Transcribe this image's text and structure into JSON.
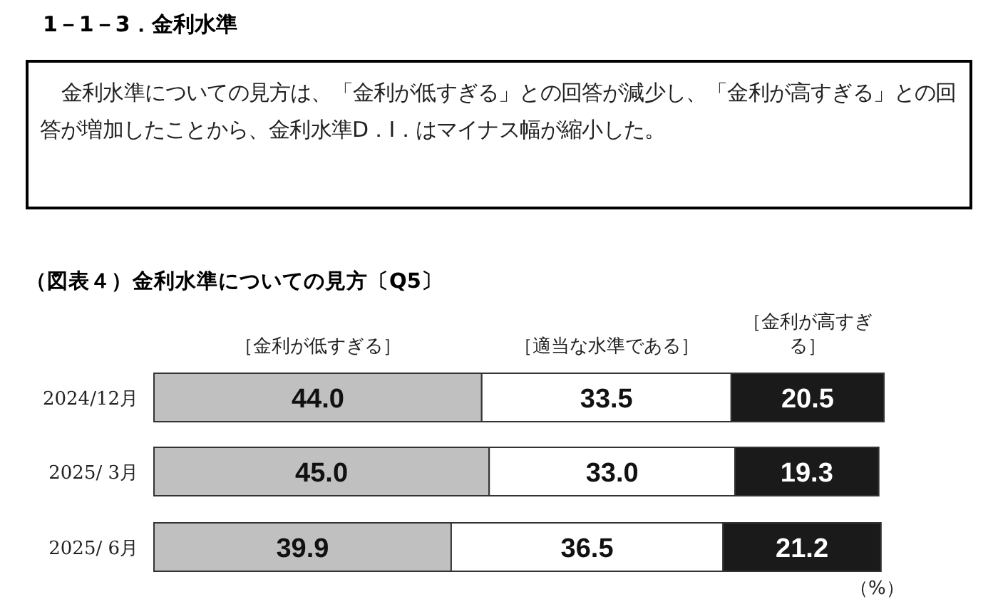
{
  "chart_data": {
    "type": "bar",
    "orientation": "horizontal",
    "stacked": true,
    "legend": "top",
    "title": "（図表４）金利水準についての見方〔Q5〕",
    "annotations": [
      "1－1－3．金利水準",
      "金利水準についての見方は、「金利が低すぎる」との回答が減少し、「金利が高すぎる」との回答が増加したことから、金利水準D．I．はマイナス幅が縮小した。",
      "（%）"
    ],
    "categories": [
      "2024/12月",
      "2025/ 3月",
      "2025/ 6月"
    ],
    "series": [
      {
        "name": "［金利が低すぎる］",
        "color": "#c0c0c0",
        "values": [
          44.0,
          45.0,
          39.9
        ],
        "value_labels": [
          "44.0",
          "45.0",
          "39.9"
        ]
      },
      {
        "name": "［適当な水準である］",
        "color": "#ffffff",
        "values": [
          33.5,
          33.0,
          36.5
        ],
        "value_labels": [
          "33.5",
          "33.0",
          "36.5"
        ]
      },
      {
        "name": "［金利が高すぎる］",
        "color": "#1a1a1a",
        "values": [
          20.5,
          19.3,
          21.2
        ],
        "value_labels": [
          "20.5",
          "19.3",
          "21.2"
        ]
      }
    ]
  }
}
